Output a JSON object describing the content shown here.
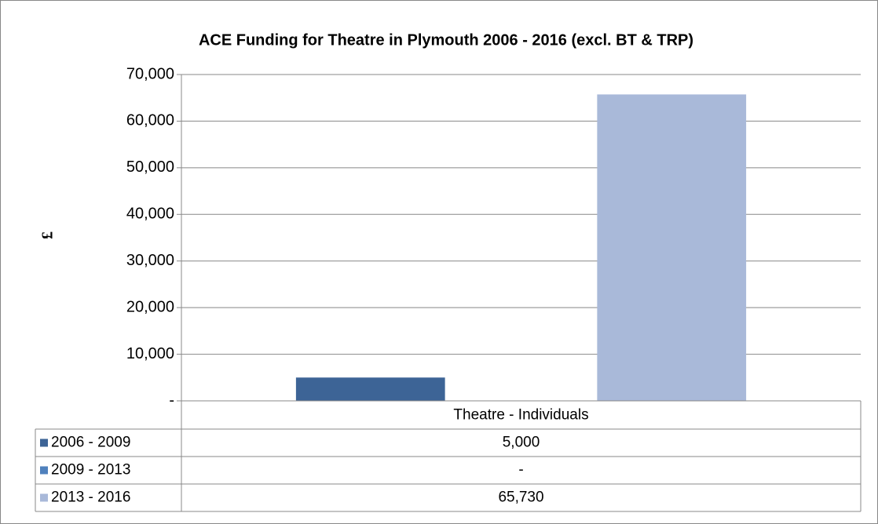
{
  "chart_data": {
    "type": "bar",
    "title": "ACE Funding for Theatre in Plymouth 2006 - 2016 (excl. BT & TRP)",
    "y_label": "£",
    "categories": [
      "Theatre - Individuals"
    ],
    "series": [
      {
        "name": "2006 - 2009",
        "color": "#3d6496",
        "values": [
          5000
        ],
        "value_labels": [
          "5,000"
        ]
      },
      {
        "name": "2009 - 2013",
        "color": "#4f81bd",
        "values": [
          0
        ],
        "value_labels": [
          "-"
        ]
      },
      {
        "name": "2013 - 2016",
        "color": "#a9b9d9",
        "values": [
          65730
        ],
        "value_labels": [
          "65,730"
        ]
      }
    ],
    "ylim": [
      0,
      70000
    ],
    "yticks": [
      {
        "value": 0,
        "label": "-"
      },
      {
        "value": 10000,
        "label": "10,000"
      },
      {
        "value": 20000,
        "label": "20,000"
      },
      {
        "value": 30000,
        "label": "30,000"
      },
      {
        "value": 40000,
        "label": "40,000"
      },
      {
        "value": 50000,
        "label": "50,000"
      },
      {
        "value": 60000,
        "label": "60,000"
      },
      {
        "value": 70000,
        "label": "70,000"
      }
    ],
    "grid": true
  }
}
